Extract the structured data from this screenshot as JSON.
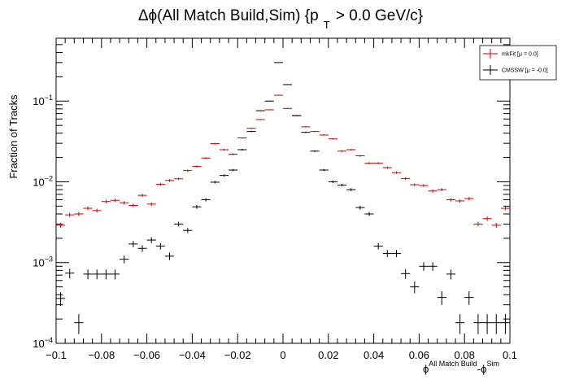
{
  "chart_data": {
    "type": "scatter",
    "title": {
      "prefix": "Δϕ(All Match Build,Sim) {p",
      "sub": "T",
      "suffix": " > 0.0 GeV/c}"
    },
    "xlabel": {
      "base1": "ϕ",
      "sup1": "All Match Build",
      "mid": "-ϕ",
      "sup2": "Sim"
    },
    "ylabel": "Fraction of Tracks",
    "xlim": [
      -0.1,
      0.1
    ],
    "ylim": [
      0.0001,
      0.6
    ],
    "yscale": "log",
    "x_tick_labels": [
      "−0.1",
      "−0.08",
      "−0.06",
      "−0.04",
      "−0.02",
      "0",
      "0.02",
      "0.04",
      "0.06",
      "0.08",
      "0.1"
    ],
    "x_tick_values": [
      -0.1,
      -0.08,
      -0.06,
      -0.04,
      -0.02,
      0,
      0.02,
      0.04,
      0.06,
      0.08,
      0.1
    ],
    "y_ticks": [
      {
        "value": 0.0001,
        "base": "10",
        "exp": "−4"
      },
      {
        "value": 0.001,
        "base": "10",
        "exp": "−3"
      },
      {
        "value": 0.01,
        "base": "10",
        "exp": "−2"
      },
      {
        "value": 0.1,
        "base": "10",
        "exp": "−1"
      }
    ],
    "bin_width": 0.004,
    "legend": {
      "position": "top-right",
      "entries": [
        {
          "label": "mkFit  [μ =  0.0]",
          "color": "#cc0000"
        },
        {
          "label": "CMSSW  [μ = -0.0]",
          "color": "#000000"
        }
      ]
    },
    "series": [
      {
        "name": "mkFit",
        "color": "#cc0000",
        "x": [
          -0.098,
          -0.094,
          -0.09,
          -0.086,
          -0.082,
          -0.078,
          -0.074,
          -0.07,
          -0.066,
          -0.062,
          -0.058,
          -0.054,
          -0.05,
          -0.046,
          -0.042,
          -0.038,
          -0.034,
          -0.03,
          -0.026,
          -0.022,
          -0.018,
          -0.014,
          -0.01,
          -0.006,
          -0.002,
          0.002,
          0.006,
          0.01,
          0.014,
          0.018,
          0.022,
          0.026,
          0.03,
          0.034,
          0.038,
          0.042,
          0.046,
          0.05,
          0.054,
          0.058,
          0.062,
          0.066,
          0.07,
          0.074,
          0.078,
          0.082,
          0.086,
          0.09,
          0.094,
          0.098
        ],
        "y": [
          0.0029,
          0.0039,
          0.004,
          0.0047,
          0.0044,
          0.0057,
          0.0059,
          0.0055,
          0.0051,
          0.0068,
          0.0053,
          0.0093,
          0.0104,
          0.0109,
          0.0138,
          0.0155,
          0.0197,
          0.0297,
          0.025,
          0.022,
          0.035,
          0.046,
          0.059,
          0.078,
          0.118,
          0.081,
          0.066,
          0.048,
          0.042,
          0.038,
          0.034,
          0.024,
          0.025,
          0.021,
          0.017,
          0.017,
          0.015,
          0.013,
          0.011,
          0.0092,
          0.009,
          0.0077,
          0.008,
          0.006,
          0.0058,
          0.0062,
          0.003,
          0.0035,
          0.0029,
          0.0047
        ]
      },
      {
        "name": "CMSSW",
        "color": "#000000",
        "x": [
          -0.098,
          -0.094,
          -0.09,
          -0.086,
          -0.082,
          -0.078,
          -0.074,
          -0.07,
          -0.066,
          -0.062,
          -0.058,
          -0.054,
          -0.05,
          -0.046,
          -0.042,
          -0.038,
          -0.034,
          -0.03,
          -0.026,
          -0.022,
          -0.018,
          -0.014,
          -0.01,
          -0.006,
          -0.002,
          0.002,
          0.006,
          0.01,
          0.014,
          0.018,
          0.022,
          0.026,
          0.03,
          0.034,
          0.038,
          0.042,
          0.046,
          0.05,
          0.054,
          0.058,
          0.062,
          0.066,
          0.07,
          0.074,
          0.078,
          0.082,
          0.086,
          0.09,
          0.094,
          0.098
        ],
        "y": [
          0.00036,
          0.00074,
          0.00018,
          0.00072,
          0.00072,
          0.00072,
          0.00072,
          0.0011,
          0.0017,
          0.0015,
          0.0019,
          0.0016,
          0.0012,
          0.003,
          0.0025,
          0.0049,
          0.006,
          0.0099,
          0.012,
          0.014,
          0.025,
          0.042,
          0.076,
          0.1,
          0.3,
          0.16,
          0.066,
          0.041,
          0.024,
          0.014,
          0.01,
          0.0091,
          0.008,
          0.0048,
          0.004,
          0.0016,
          0.0013,
          0.0013,
          0.00073,
          0.0005,
          0.0009,
          0.0009,
          0.00037,
          0.00072,
          0.00018,
          0.00037,
          0.00018,
          0.00018,
          0.00018,
          0.00018
        ]
      }
    ]
  }
}
